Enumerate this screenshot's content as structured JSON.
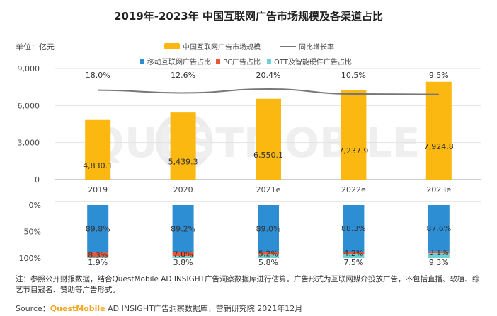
{
  "title": "2019年-2023年 中国互联网广告市场规模及各渠道占比",
  "unit_label": "单位：亿元",
  "legend_top": {
    "bar": "中国互联网广告市场规模",
    "line": "同比增长率"
  },
  "legend_bottom": {
    "mobile": "移动互联网广告占比",
    "pc": "PC广告占比",
    "ott": "OTT及智能硬件广告占比"
  },
  "colors": {
    "bar": "#fbb810",
    "line": "#777777",
    "mobile": "#2d8ed4",
    "pc": "#e8573a",
    "ott": "#6fd0d6",
    "grid": "#e3e3e3"
  },
  "watermark": "QUESTMOBILE",
  "note": "注：参照公开财报数据，结合QuestMobile AD INSIGHT广告洞察数据库进行估算。广告形式为互联网媒介投放广告，不包括直播、软植、综艺节目冠名、赞助等广告形式。",
  "source": {
    "prefix": "Source：",
    "brand": "QuestMobile",
    "rest": " AD INSIGHT广告洞察数据库，营销研究院 2021年12月"
  },
  "chart_data": [
    {
      "type": "bar",
      "title": "2019年-2023年 中国互联网广告市场规模及各渠道占比",
      "ylabel": "单位：亿元",
      "categories": [
        "2019",
        "2020",
        "2021e",
        "2022e",
        "2023e"
      ],
      "series": [
        {
          "name": "中国互联网广告市场规模",
          "values": [
            4830.1,
            5439.3,
            6550.1,
            7237.9,
            7924.8
          ],
          "labels": [
            "4,830.1",
            "5,439.3",
            "6,550.1",
            "7,237.9",
            "7,924.8"
          ]
        }
      ],
      "line_series": {
        "name": "同比增长率",
        "values": [
          18.0,
          12.6,
          20.4,
          10.5,
          9.5
        ],
        "labels": [
          "18.0%",
          "12.6%",
          "20.4%",
          "10.5%",
          "9.5%"
        ]
      },
      "ylim": [
        0,
        9000
      ],
      "yticks": [
        "0",
        "3,000",
        "6,000",
        "9,000"
      ],
      "grid": true
    },
    {
      "type": "bar",
      "stacked": true,
      "categories": [
        "2019",
        "2020",
        "2021e",
        "2022e",
        "2023e"
      ],
      "series": [
        {
          "name": "移动互联网广告占比",
          "values": [
            89.8,
            89.2,
            89.0,
            88.3,
            87.6
          ],
          "labels": [
            "89.8%",
            "89.2%",
            "89.0%",
            "88.3%",
            "87.6%"
          ]
        },
        {
          "name": "PC广告占比",
          "values": [
            8.3,
            7.0,
            5.2,
            4.2,
            3.1
          ],
          "labels": [
            "8.3%",
            "7.0%",
            "5.2%",
            "4.2%",
            "3.1%"
          ]
        },
        {
          "name": "OTT及智能硬件广告占比",
          "values": [
            1.9,
            3.8,
            5.8,
            7.5,
            9.3
          ],
          "labels": [
            "1.9%",
            "3.8%",
            "5.8%",
            "7.5%",
            "9.3%"
          ]
        }
      ],
      "ylim": [
        0,
        100
      ],
      "yticks": [
        "0%",
        "50%",
        "100%"
      ],
      "y_inverted": true
    }
  ]
}
